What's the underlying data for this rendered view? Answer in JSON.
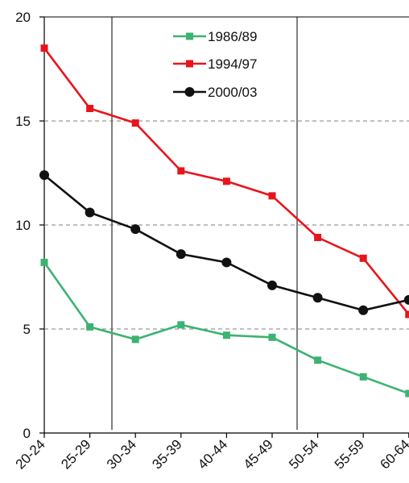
{
  "chart_data": {
    "type": "line",
    "title": "",
    "xlabel": "",
    "ylabel": "",
    "categories": [
      "20-24",
      "25-29",
      "30-34",
      "35-39",
      "40-44",
      "45-49",
      "50-54",
      "55-59",
      "60-64"
    ],
    "ylim": [
      0,
      20
    ],
    "yticks": [
      0,
      5,
      10,
      15,
      20
    ],
    "grid": "dashed horizontal at 5, 10, 15",
    "legend_position": "top-center",
    "series": [
      {
        "name": "1986/89",
        "color": "#3cb371",
        "marker": "square",
        "values": [
          8.2,
          5.1,
          4.5,
          5.2,
          4.7,
          4.6,
          3.5,
          2.7,
          1.9
        ]
      },
      {
        "name": "1994/97",
        "color": "#e8141c",
        "marker": "square",
        "values": [
          18.5,
          15.6,
          14.9,
          12.6,
          12.1,
          11.4,
          9.4,
          8.4,
          5.7
        ]
      },
      {
        "name": "2000/03",
        "color": "#111111",
        "marker": "circle",
        "values": [
          12.4,
          10.6,
          9.8,
          8.6,
          8.2,
          7.1,
          6.5,
          5.9,
          6.4
        ]
      }
    ]
  }
}
